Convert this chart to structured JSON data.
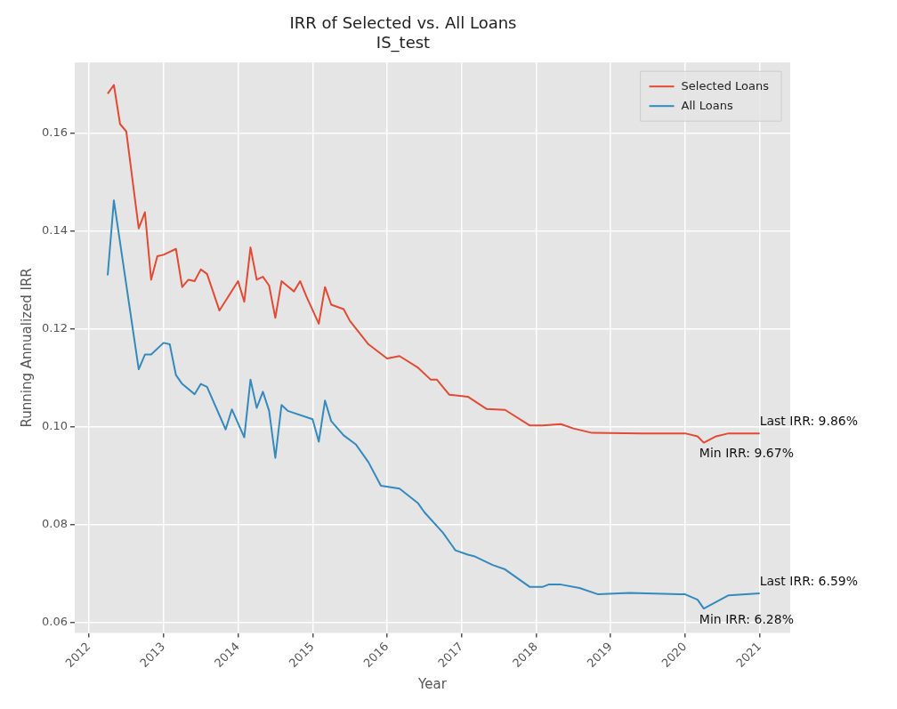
{
  "chart_data": {
    "type": "line",
    "title": "IRR of Selected vs. All Loans",
    "subtitle": "IS_test",
    "xlabel": "Year",
    "ylabel": "Running Annualized IRR",
    "xlim": [
      "2011-10-22",
      "2021-05-29"
    ],
    "xticks": [
      {
        "value": "2012-01",
        "label": "2012"
      },
      {
        "value": "2013-01",
        "label": "2013"
      },
      {
        "value": "2014-01",
        "label": "2014"
      },
      {
        "value": "2015-01",
        "label": "2015"
      },
      {
        "value": "2016-01",
        "label": "2016"
      },
      {
        "value": "2017-01",
        "label": "2017"
      },
      {
        "value": "2018-01",
        "label": "2018"
      },
      {
        "value": "2019-01",
        "label": "2019"
      },
      {
        "value": "2020-01",
        "label": "2020"
      },
      {
        "value": "2021-01",
        "label": "2021"
      }
    ],
    "ylim": [
      0.0578,
      0.1744
    ],
    "yticks": [
      {
        "value": 0.06,
        "label": "0.06"
      },
      {
        "value": 0.08,
        "label": "0.08"
      },
      {
        "value": 0.1,
        "label": "0.10"
      },
      {
        "value": 0.12,
        "label": "0.12"
      },
      {
        "value": 0.14,
        "label": "0.14"
      },
      {
        "value": 0.16,
        "label": "0.16"
      }
    ],
    "grid": true,
    "legend": "top right",
    "marker": "none",
    "line_style": "solid",
    "series": [
      {
        "name": "Selected Loans",
        "color": "#e24a33",
        "x": [
          "2012-04",
          "2012-05",
          "2012-06",
          "2012-07",
          "2012-09",
          "2012-10",
          "2012-11",
          "2012-12",
          "2013-01",
          "2013-03",
          "2013-04",
          "2013-05",
          "2013-06",
          "2013-07",
          "2013-08",
          "2013-10",
          "2014-01",
          "2014-02",
          "2014-03",
          "2014-04",
          "2014-05",
          "2014-06",
          "2014-07",
          "2014-08",
          "2014-10",
          "2014-11",
          "2014-12",
          "2015-02",
          "2015-03",
          "2015-04",
          "2015-06",
          "2015-07",
          "2015-10",
          "2016-01",
          "2016-03",
          "2016-06",
          "2016-08",
          "2016-09",
          "2016-11",
          "2017-02",
          "2017-05",
          "2017-08",
          "2017-12",
          "2018-02",
          "2018-05",
          "2018-07",
          "2018-10",
          "2019-06",
          "2020-01",
          "2020-03",
          "2020-04",
          "2020-06",
          "2020-08",
          "2021-01"
        ],
        "values": [
          0.168,
          0.1698,
          0.1618,
          0.1603,
          0.1405,
          0.1438,
          0.13,
          0.1348,
          0.1351,
          0.1363,
          0.1285,
          0.13,
          0.1297,
          0.1321,
          0.1312,
          0.1237,
          0.1297,
          0.1255,
          0.1366,
          0.13,
          0.1306,
          0.1288,
          0.1222,
          0.1297,
          0.1276,
          0.1297,
          0.1266,
          0.121,
          0.1285,
          0.1249,
          0.124,
          0.1216,
          0.1168,
          0.1139,
          0.1144,
          0.112,
          0.1096,
          0.1096,
          0.1065,
          0.1061,
          0.1036,
          0.1034,
          0.1002,
          0.1002,
          0.1005,
          0.0996,
          0.0987,
          0.0986,
          0.0986,
          0.098,
          0.0967,
          0.098,
          0.0986,
          0.0986
        ]
      },
      {
        "name": "All Loans",
        "color": "#348abd",
        "x": [
          "2012-04",
          "2012-05",
          "2012-09",
          "2012-10",
          "2012-11",
          "2013-01",
          "2013-02",
          "2013-03",
          "2013-04",
          "2013-06",
          "2013-07",
          "2013-08",
          "2013-11",
          "2013-12",
          "2014-02",
          "2014-03",
          "2014-04",
          "2014-05",
          "2014-06",
          "2014-07",
          "2014-08",
          "2014-09",
          "2015-01",
          "2015-02",
          "2015-03",
          "2015-04",
          "2015-06",
          "2015-08",
          "2015-10",
          "2015-12",
          "2016-03",
          "2016-06",
          "2016-07",
          "2016-10",
          "2016-12",
          "2017-02",
          "2017-03",
          "2017-06",
          "2017-08",
          "2017-12",
          "2018-02",
          "2018-03",
          "2018-05",
          "2018-08",
          "2018-11",
          "2019-04",
          "2020-01",
          "2020-03",
          "2020-04",
          "2020-08",
          "2021-01"
        ],
        "values": [
          0.1309,
          0.1462,
          0.1117,
          0.1147,
          0.1147,
          0.1171,
          0.1168,
          0.1105,
          0.1087,
          0.1066,
          0.1087,
          0.1081,
          0.0994,
          0.1035,
          0.0978,
          0.1096,
          0.1038,
          0.1071,
          0.1032,
          0.0936,
          0.1044,
          0.1032,
          0.1015,
          0.0969,
          0.1053,
          0.1011,
          0.0982,
          0.0963,
          0.0927,
          0.0879,
          0.0873,
          0.0843,
          0.0825,
          0.0783,
          0.0747,
          0.0738,
          0.0735,
          0.0717,
          0.0708,
          0.0672,
          0.0672,
          0.0677,
          0.0677,
          0.067,
          0.0657,
          0.066,
          0.0657,
          0.0646,
          0.0628,
          0.0655,
          0.0659
        ]
      }
    ],
    "annotations": [
      {
        "text": "Last IRR: 9.86%",
        "x": "2021-01",
        "y": 0.0986
      },
      {
        "text": "Min IRR: 9.67%",
        "x": "2020-04",
        "y": 0.0967
      },
      {
        "text": "Last IRR: 6.59%",
        "x": "2021-01",
        "y": 0.0659
      },
      {
        "text": "Min IRR: 6.28%",
        "x": "2020-04",
        "y": 0.0628
      }
    ]
  }
}
